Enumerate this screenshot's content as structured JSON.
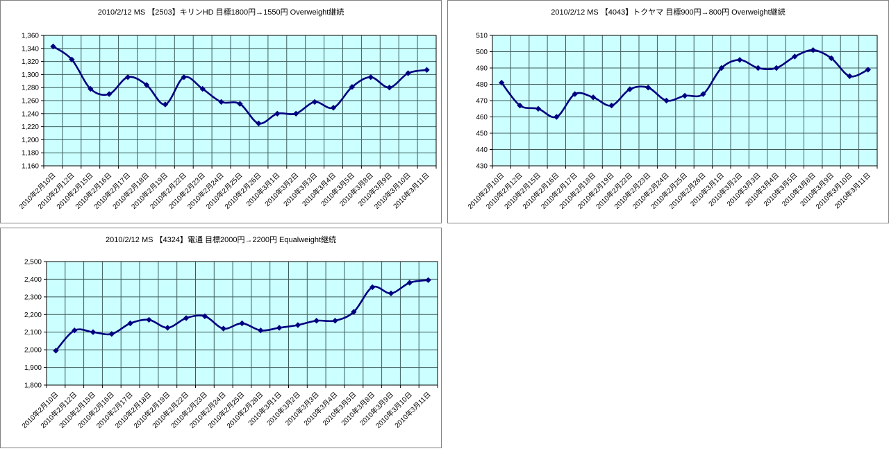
{
  "colors": {
    "plot_bg": "#ccffff",
    "grid_line": "#3d5b5b",
    "series_line": "#000080",
    "panel_border": "#808080",
    "plot_border": "#000000",
    "text": "#000000"
  },
  "chart_data": [
    {
      "type": "line",
      "title": "2010/2/12 MS 【2503】キリンHD 目標1800円→1550円 Overweight継続",
      "xlabel": "",
      "ylabel": "",
      "legend": "none",
      "grid": true,
      "marker": "diamond",
      "line_color": "#000080",
      "plot_bg": "#ccffff",
      "ylim": [
        1160,
        1360
      ],
      "ystep": 20,
      "y_format": "comma",
      "categories": [
        "2010年2月10日",
        "2010年2月12日",
        "2010年2月15日",
        "2010年2月16日",
        "2010年2月17日",
        "2010年2月18日",
        "2010年2月19日",
        "2010年2月22日",
        "2010年2月23日",
        "2010年2月24日",
        "2010年2月25日",
        "2010年2月26日",
        "2010年3月1日",
        "2010年3月2日",
        "2010年3月3日",
        "2010年3月4日",
        "2010年3月5日",
        "2010年3月8日",
        "2010年3月9日",
        "2010年3月10日",
        "2010年3月11日"
      ],
      "values": [
        1343,
        1323,
        1278,
        1270,
        1296,
        1284,
        1254,
        1296,
        1278,
        1258,
        1255,
        1225,
        1240,
        1240,
        1258,
        1249,
        1281,
        1296,
        1280,
        1302,
        1307
      ]
    },
    {
      "type": "line",
      "title": "2010/2/12 MS 【4043】トクヤマ 目標900円→800円 Overweight継続",
      "xlabel": "",
      "ylabel": "",
      "legend": "none",
      "grid": true,
      "marker": "diamond",
      "line_color": "#000080",
      "plot_bg": "#ccffff",
      "ylim": [
        430,
        510
      ],
      "ystep": 10,
      "y_format": "plain",
      "categories": [
        "2010年2月10日",
        "2010年2月12日",
        "2010年2月15日",
        "2010年2月16日",
        "2010年2月17日",
        "2010年2月18日",
        "2010年2月19日",
        "2010年2月22日",
        "2010年2月23日",
        "2010年2月24日",
        "2010年2月25日",
        "2010年2月26日",
        "2010年3月1日",
        "2010年3月2日",
        "2010年3月3日",
        "2010年3月4日",
        "2010年3月5日",
        "2010年3月8日",
        "2010年3月9日",
        "2010年3月10日",
        "2010年3月11日"
      ],
      "values": [
        481,
        467,
        465,
        460,
        474,
        472,
        467,
        477,
        478,
        470,
        473,
        474,
        490,
        495,
        490,
        490,
        497,
        501,
        496,
        485,
        489
      ]
    },
    {
      "type": "line",
      "title": "2010/2/12 MS 【4324】電通 目標2000円→2200円 Equalweight継続",
      "xlabel": "",
      "ylabel": "",
      "legend": "none",
      "grid": true,
      "marker": "diamond",
      "line_color": "#000080",
      "plot_bg": "#ccffff",
      "ylim": [
        1800,
        2500
      ],
      "ystep": 100,
      "y_format": "comma",
      "categories": [
        "2010年2月10日",
        "2010年2月12日",
        "2010年2月15日",
        "2010年2月16日",
        "2010年2月17日",
        "2010年2月18日",
        "2010年2月19日",
        "2010年2月22日",
        "2010年2月23日",
        "2010年2月24日",
        "2010年2月25日",
        "2010年2月26日",
        "2010年3月1日",
        "2010年3月2日",
        "2010年3月3日",
        "2010年3月4日",
        "2010年3月5日",
        "2010年3月8日",
        "2010年3月9日",
        "2010年3月10日",
        "2010年3月11日"
      ],
      "values": [
        1995,
        2110,
        2100,
        2090,
        2150,
        2170,
        2125,
        2180,
        2190,
        2120,
        2150,
        2110,
        2125,
        2140,
        2165,
        2165,
        2215,
        2355,
        2320,
        2380,
        2395
      ]
    }
  ]
}
